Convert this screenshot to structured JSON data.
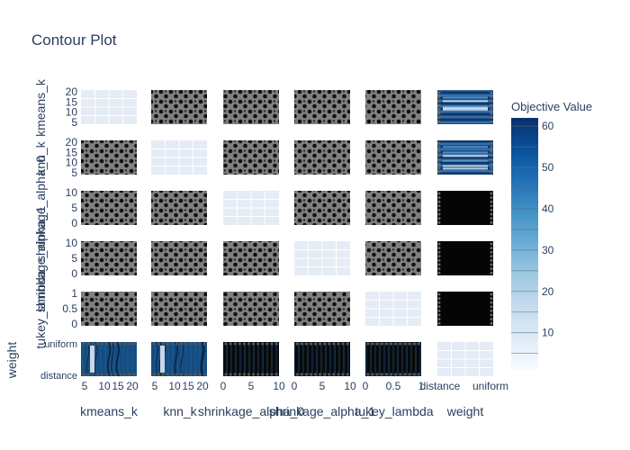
{
  "chart_data": {
    "type": "contour",
    "title": "Contour Plot",
    "colorbar": {
      "title": "Objective Value",
      "ticks": [
        10,
        20,
        30,
        40,
        50,
        60
      ],
      "range": [
        1,
        62
      ],
      "stops": [
        "#f7fbff",
        "#deebf7",
        "#c6dbef",
        "#9ecae1",
        "#6baed6",
        "#4292c6",
        "#2171b5",
        "#08519c",
        "#08306b"
      ]
    },
    "params": [
      {
        "name": "kmeans_k",
        "y_ticks": [
          "20",
          "15",
          "10",
          "5"
        ],
        "x_ticks": [
          "5",
          "10",
          "15",
          "20"
        ]
      },
      {
        "name": "knn_k",
        "y_ticks": [
          "20",
          "15",
          "10",
          "5"
        ],
        "x_ticks": [
          "5",
          "10",
          "15",
          "20"
        ]
      },
      {
        "name": "shrinkage_alpha_0",
        "y_ticks": [
          "10",
          "5",
          "0"
        ],
        "x_ticks": [
          "0",
          "5",
          "10"
        ]
      },
      {
        "name": "shrinkage_alpha_1",
        "y_ticks": [
          "10",
          "5",
          "0"
        ],
        "x_ticks": [
          "0",
          "5",
          "10"
        ]
      },
      {
        "name": "tukey_lambda",
        "y_ticks": [
          "1",
          "0.5",
          "0"
        ],
        "x_ticks": [
          "0",
          "0.5",
          "1"
        ]
      },
      {
        "name": "weight",
        "y_ticks": [
          "uniform",
          "distance"
        ],
        "x_ticks": [
          "distance",
          "uniform"
        ]
      }
    ],
    "grid": true,
    "legend": "right"
  }
}
